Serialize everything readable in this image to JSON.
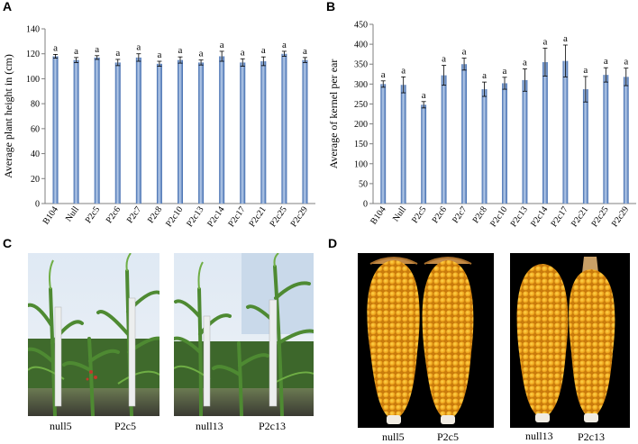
{
  "panels": {
    "a": "A",
    "b": "B",
    "c": "C",
    "d": "D"
  },
  "colors": {
    "bar_light": "#b9cdea",
    "bar_dark": "#3d69ad",
    "axis": "#7f7f7f"
  },
  "chart_data": [
    {
      "type": "bar",
      "ylabel": "Average  plant height in (cm)",
      "ylim": [
        0,
        140
      ],
      "yticks": [
        0,
        20,
        40,
        60,
        80,
        100,
        120,
        140
      ],
      "categories": [
        "B104",
        "Null",
        "P2c5",
        "P2c6",
        "P2c7",
        "P2c8",
        "P2c10",
        "P2c13",
        "P2c14",
        "P2c17",
        "P2c21",
        "P2c25",
        "P2c29"
      ],
      "values": [
        118,
        115,
        117,
        113,
        117,
        112,
        115,
        113,
        118,
        113,
        114,
        120,
        115
      ],
      "errors": [
        1.5,
        2,
        1.5,
        2.5,
        3,
        2,
        2.5,
        2,
        4,
        3,
        3.5,
        2,
        2
      ],
      "labels": [
        "a",
        "a",
        "a",
        "a",
        "a",
        "a",
        "a",
        "a",
        "a",
        "a",
        "a",
        "a",
        "a"
      ]
    },
    {
      "type": "bar",
      "ylabel": "Average of kernel per ear",
      "ylim": [
        0,
        450
      ],
      "yticks": [
        0,
        50,
        100,
        150,
        200,
        250,
        300,
        350,
        400,
        450
      ],
      "categories": [
        "B104",
        "Null",
        "P2c5",
        "P2c6",
        "P2c7",
        "P2c8",
        "P2c10",
        "P2c13",
        "P2c14",
        "P2c17",
        "P2c21",
        "P2c25",
        "P2c29"
      ],
      "values": [
        300,
        298,
        248,
        322,
        350,
        287,
        302,
        310,
        355,
        358,
        287,
        323,
        318
      ],
      "errors": [
        8,
        20,
        8,
        25,
        15,
        18,
        15,
        28,
        35,
        40,
        32,
        18,
        22
      ],
      "labels": [
        "a",
        "a",
        "a",
        "a",
        "a",
        "a",
        "a",
        "a",
        "a",
        "a",
        "a",
        "a",
        "a"
      ]
    }
  ],
  "photo_c": {
    "captions": [
      "null5",
      "P2c5",
      "null13",
      "P2c13"
    ]
  },
  "photo_d": {
    "captions": [
      "null5",
      "P2c5",
      "null13",
      "P2c13"
    ]
  }
}
